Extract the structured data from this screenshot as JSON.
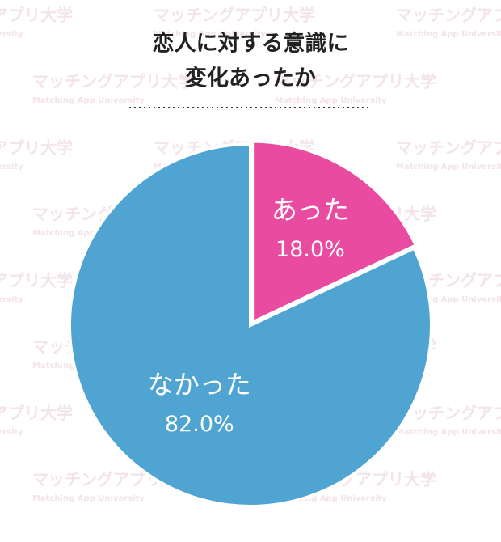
{
  "chart_data": {
    "type": "pie",
    "title_lines": [
      "恋人に対する意識に",
      "変化あったか"
    ],
    "categories": [
      "あった",
      "なかった"
    ],
    "values": [
      18.0,
      82.0
    ],
    "value_labels": [
      "18.0%",
      "82.0%"
    ],
    "colors": [
      "#e94ba0",
      "#4fa4d2"
    ]
  },
  "watermark": {
    "name": "マッチングアプリ大学",
    "sub": "Matching App University"
  }
}
